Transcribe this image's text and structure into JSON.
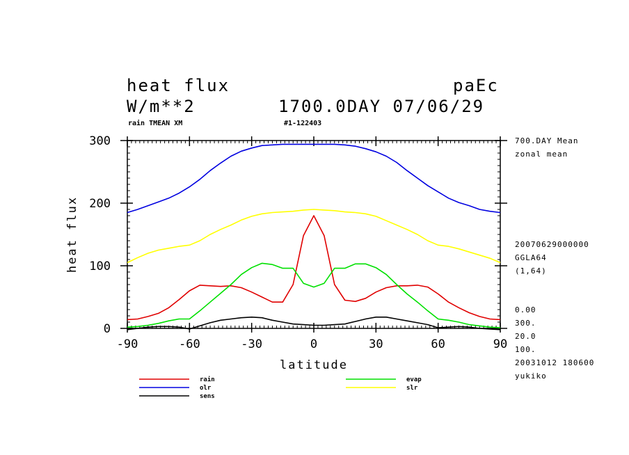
{
  "header": {
    "title": "heat flux",
    "units": "W/m**2",
    "model": "paEc",
    "date_line": "1700.0DAY 07/06/29",
    "sub_left": "rain TMEAN XM",
    "sub_mid": "#1-122403"
  },
  "side_info": {
    "mean": "700.DAY Mean",
    "zonal": "zonal mean",
    "datestamp": "20070629000000",
    "grid": "GGLA64",
    "dims": "(1,64)",
    "v1": "0.00",
    "v2": "300.",
    "v3": "20.0",
    "v4": "100.",
    "run": "20031012 180600",
    "user": "yukiko"
  },
  "chart_data": {
    "type": "line",
    "xlabel": "latitude",
    "ylabel": "heat flux",
    "xlim": [
      -90,
      90
    ],
    "ylim": [
      0,
      300
    ],
    "xticks": [
      -90,
      -60,
      -30,
      0,
      30,
      60,
      90
    ],
    "xtick_labels": [
      "-90",
      "-60",
      "-30",
      "0",
      "30",
      "60",
      "90"
    ],
    "yticks": [
      0,
      100,
      200,
      300
    ],
    "ytick_labels": [
      "0",
      "100",
      "200",
      "300"
    ],
    "x": [
      -90,
      -85,
      -80,
      -75,
      -70,
      -65,
      -60,
      -55,
      -50,
      -45,
      -40,
      -35,
      -30,
      -25,
      -20,
      -15,
      -10,
      -5,
      0,
      5,
      10,
      15,
      20,
      25,
      30,
      35,
      40,
      45,
      50,
      55,
      60,
      65,
      70,
      75,
      80,
      85,
      90
    ],
    "series": [
      {
        "name": "rain",
        "color": "#e00000",
        "values": [
          14,
          15,
          19,
          24,
          33,
          46,
          60,
          69,
          68,
          67,
          68,
          65,
          58,
          50,
          42,
          42,
          70,
          148,
          180,
          148,
          70,
          45,
          43,
          48,
          58,
          65,
          68,
          68,
          69,
          66,
          55,
          42,
          33,
          25,
          19,
          15,
          14
        ]
      },
      {
        "name": "evap",
        "color": "#00e000",
        "values": [
          2,
          3,
          5,
          8,
          12,
          15,
          15,
          28,
          42,
          56,
          70,
          86,
          97,
          104,
          102,
          96,
          96,
          72,
          66,
          72,
          96,
          96,
          103,
          103,
          97,
          86,
          70,
          55,
          42,
          28,
          15,
          13,
          10,
          6,
          4,
          2,
          1
        ]
      },
      {
        "name": "olr",
        "color": "#0000e0",
        "values": [
          185,
          190,
          196,
          202,
          208,
          216,
          226,
          238,
          252,
          264,
          275,
          283,
          288,
          292,
          293,
          294,
          294,
          294,
          294,
          294,
          294,
          293,
          291,
          287,
          282,
          275,
          265,
          252,
          240,
          228,
          218,
          208,
          201,
          196,
          190,
          187,
          185
        ]
      },
      {
        "name": "slr",
        "color": "#ffff00",
        "values": [
          105,
          113,
          120,
          125,
          128,
          131,
          133,
          140,
          150,
          158,
          165,
          173,
          179,
          183,
          185,
          186,
          187,
          189,
          190,
          189,
          188,
          186,
          185,
          183,
          179,
          172,
          165,
          158,
          150,
          140,
          133,
          131,
          127,
          122,
          117,
          112,
          105
        ]
      },
      {
        "name": "sens",
        "color": "#000000",
        "values": [
          -2,
          0,
          2,
          3,
          3,
          2,
          -1,
          4,
          9,
          13,
          15,
          17,
          18,
          17,
          13,
          10,
          7,
          6,
          5,
          5,
          6,
          7,
          11,
          15,
          18,
          18,
          15,
          12,
          9,
          6,
          1,
          2,
          3,
          2,
          0,
          -1,
          -2
        ]
      }
    ]
  }
}
